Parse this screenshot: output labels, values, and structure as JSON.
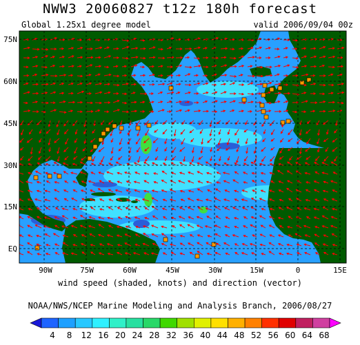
{
  "title": "NWW3 20060827 t12z 180h forecast",
  "model_label": "Global 1.25x1 degree model",
  "valid_label": "valid 2006/09/04 00z",
  "x_axis_label": "wind speed (shaded, knots) and direction (vector)",
  "credit": "NOAA/NWS/NCEP Marine Modeling and Analysis Branch, 2006/08/27",
  "map": {
    "lon_ticks": [
      "90W",
      "75W",
      "60W",
      "45W",
      "30W",
      "15W",
      "0",
      "15E"
    ],
    "lat_ticks": [
      "75N",
      "60N",
      "45N",
      "30N",
      "15N",
      "EQ"
    ],
    "colors": {
      "land": "#005a00",
      "ocean_low": "#28a0ff",
      "ocean_mid": "#41e1ff",
      "ocean_high": "#2a5fd8",
      "wind_high": "#40e040",
      "vector": "#ff0000",
      "buoy": "#ff9900",
      "grid": "#000000"
    }
  },
  "colorbar": {
    "ticks": [
      "4",
      "8",
      "12",
      "16",
      "20",
      "24",
      "28",
      "32",
      "36",
      "40",
      "44",
      "48",
      "52",
      "56",
      "60",
      "64",
      "68"
    ],
    "colors": [
      "#1818d8",
      "#1e64ff",
      "#1ea0ff",
      "#28c8ff",
      "#30f0ff",
      "#30f0c8",
      "#28e0a0",
      "#28d868",
      "#40d800",
      "#a0e000",
      "#e0f000",
      "#ffe000",
      "#ffb000",
      "#ff8000",
      "#ff3000",
      "#e00000",
      "#c02060",
      "#d040a0",
      "#ff00ff"
    ]
  }
}
